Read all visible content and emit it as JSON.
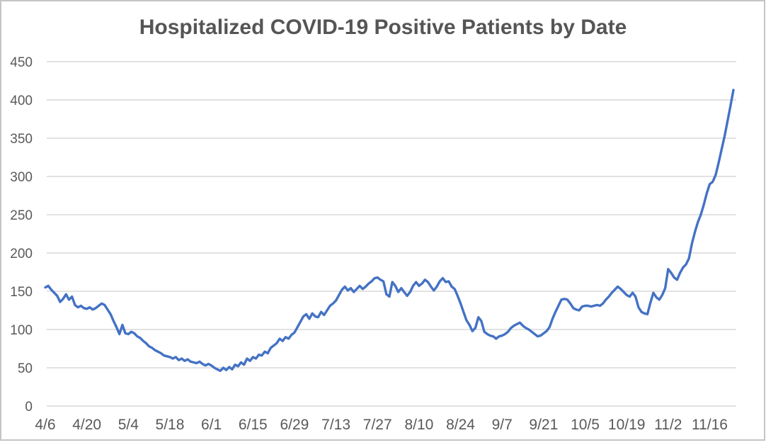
{
  "chart": {
    "title": "Hospitalized COVID-19 Positive Patients by Date",
    "colors": {
      "line": "#4472C4",
      "gridline": "#D9D9D9",
      "axis_text": "#595959",
      "title_text": "#555555",
      "background": "#FFFFFF",
      "frame_border": "#C5C5C5"
    }
  },
  "chart_data": {
    "type": "line",
    "title": "Hospitalized COVID-19 Positive Patients by Date",
    "xlabel": "",
    "ylabel": "",
    "ylim": [
      0,
      450
    ],
    "y_ticks": [
      0,
      50,
      100,
      150,
      200,
      250,
      300,
      350,
      400,
      450
    ],
    "x_tick_labels": [
      "4/6",
      "4/20",
      "5/4",
      "5/18",
      "6/1",
      "6/15",
      "6/29",
      "7/13",
      "7/27",
      "8/10",
      "8/24",
      "9/7",
      "9/21",
      "10/5",
      "10/19",
      "11/2",
      "11/16"
    ],
    "points_per_tick_interval": 14,
    "grid": "horizontal",
    "legend": "none",
    "series": [
      {
        "name": "Hospitalized COVID-19 Positive Patients",
        "color": "#4472C4",
        "cadence": "daily",
        "first_point_label": "4/6",
        "values": [
          155,
          157,
          152,
          148,
          144,
          136,
          140,
          146,
          139,
          143,
          132,
          129,
          131,
          128,
          127,
          129,
          126,
          128,
          131,
          134,
          132,
          126,
          120,
          111,
          103,
          94,
          106,
          95,
          94,
          97,
          95,
          91,
          89,
          85,
          82,
          78,
          76,
          73,
          71,
          69,
          66,
          65,
          64,
          62,
          64,
          60,
          62,
          59,
          61,
          58,
          57,
          56,
          58,
          55,
          53,
          55,
          53,
          50,
          48,
          46,
          50,
          47,
          51,
          48,
          54,
          52,
          57,
          54,
          62,
          59,
          64,
          62,
          67,
          66,
          71,
          69,
          76,
          79,
          82,
          88,
          85,
          90,
          88,
          93,
          96,
          103,
          110,
          117,
          120,
          114,
          121,
          117,
          116,
          123,
          119,
          125,
          131,
          134,
          138,
          145,
          152,
          156,
          151,
          154,
          149,
          153,
          157,
          153,
          156,
          160,
          163,
          167,
          168,
          165,
          163,
          146,
          143,
          162,
          157,
          149,
          154,
          149,
          144,
          149,
          157,
          162,
          157,
          160,
          165,
          162,
          156,
          151,
          156,
          163,
          167,
          162,
          163,
          156,
          153,
          144,
          134,
          123,
          112,
          106,
          98,
          102,
          116,
          111,
          97,
          94,
          92,
          91,
          88,
          91,
          92,
          94,
          97,
          102,
          105,
          107,
          109,
          105,
          102,
          100,
          97,
          94,
          91,
          92,
          95,
          98,
          103,
          114,
          123,
          131,
          139,
          140,
          139,
          134,
          128,
          126,
          125,
          130,
          131,
          131,
          130,
          131,
          132,
          131,
          134,
          139,
          143,
          148,
          152,
          156,
          153,
          149,
          145,
          143,
          148,
          143,
          129,
          123,
          121,
          120,
          135,
          148,
          142,
          139,
          145,
          154,
          179,
          174,
          168,
          165,
          174,
          181,
          185,
          193,
          212,
          227,
          240,
          250,
          263,
          278,
          290,
          293,
          302,
          318,
          335,
          352,
          372,
          392,
          413
        ]
      }
    ]
  }
}
